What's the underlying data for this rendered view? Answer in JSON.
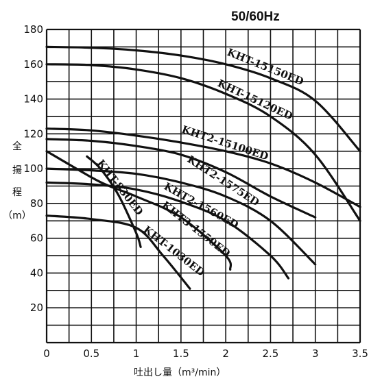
{
  "chart_data": {
    "type": "line",
    "title": "50/60Hz",
    "xlabel": "吐出し量（m³/min）",
    "ylabel": "全揚程（m）",
    "ylabel_chars": [
      "全",
      "揚",
      "程",
      "（m）"
    ],
    "xlim": [
      0,
      3.5
    ],
    "ylim": [
      0,
      180
    ],
    "x_ticks": [
      "0",
      "0.5",
      "1",
      "1.5",
      "2",
      "2.5",
      "3",
      "3.5"
    ],
    "y_ticks": [
      "20",
      "40",
      "60",
      "80",
      "100",
      "120",
      "140",
      "160",
      "180"
    ],
    "grid": true,
    "series": [
      {
        "name": "KHT-15150ED",
        "x": [
          0,
          0.5,
          1,
          1.5,
          2,
          2.5,
          3,
          3.5
        ],
        "y": [
          170,
          169.5,
          168,
          165,
          160,
          152,
          139,
          110
        ]
      },
      {
        "name": "KHT-15120ED",
        "x": [
          0,
          0.5,
          1,
          1.5,
          2,
          2.5,
          3,
          3.5
        ],
        "y": [
          160,
          159.5,
          157,
          152,
          143,
          130,
          108,
          70
        ]
      },
      {
        "name": "KHT2-15100ED",
        "x": [
          0,
          0.5,
          1,
          1.5,
          2,
          2.5,
          3,
          3.5
        ],
        "y": [
          123,
          122,
          119,
          115,
          110,
          103,
          92,
          78
        ]
      },
      {
        "name": "KHT2-1575ED",
        "x": [
          0,
          0.5,
          1,
          1.5,
          2,
          2.5,
          3
        ],
        "y": [
          117,
          116,
          113,
          108,
          98,
          84,
          72
        ]
      },
      {
        "name": "KHT2-1560ED",
        "x": [
          0,
          0.5,
          1,
          1.5,
          2,
          2.5,
          3
        ],
        "y": [
          100,
          99,
          97,
          92,
          84,
          70,
          45
        ]
      },
      {
        "name": "KHT3-1550ED",
        "x": [
          0,
          0.5,
          1,
          1.5,
          2,
          2.5,
          2.7
        ],
        "y": [
          92,
          91,
          88,
          81,
          70,
          50,
          37
        ]
      },
      {
        "name": "KHT-830ED",
        "x": [
          0,
          0.5,
          0.7,
          1,
          1.5,
          2,
          2.05
        ],
        "y": [
          110,
          95,
          90,
          84,
          72,
          50,
          42
        ]
      },
      {
        "name": "KHT-1030ED",
        "x": [
          0,
          0.5,
          1,
          1.3,
          1.6
        ],
        "y": [
          73,
          71,
          66,
          50,
          31
        ]
      },
      {
        "name": "",
        "x": [
          0.45,
          0.6,
          0.8,
          1.0,
          1.05
        ],
        "y": [
          107,
          100,
          85,
          63,
          55
        ]
      }
    ],
    "labels": [
      {
        "text": "KHT-15150ED",
        "series": "KHT-15150ED"
      },
      {
        "text": "KHT-15120ED",
        "series": "KHT-15120ED"
      },
      {
        "text": "KHT2-15100ED",
        "series": "KHT2-15100ED"
      },
      {
        "text": "KHT2-1575ED",
        "series": "KHT2-1575ED"
      },
      {
        "text": "KHT2-1560ED",
        "series": "KHT2-1560ED"
      },
      {
        "text": "KHT3-1550ED",
        "series": "KHT3-1550ED"
      },
      {
        "text": "KHT-830ED",
        "series": "KHT-830ED"
      },
      {
        "text": "KHT-1030ED",
        "series": "KHT-1030ED"
      }
    ]
  }
}
